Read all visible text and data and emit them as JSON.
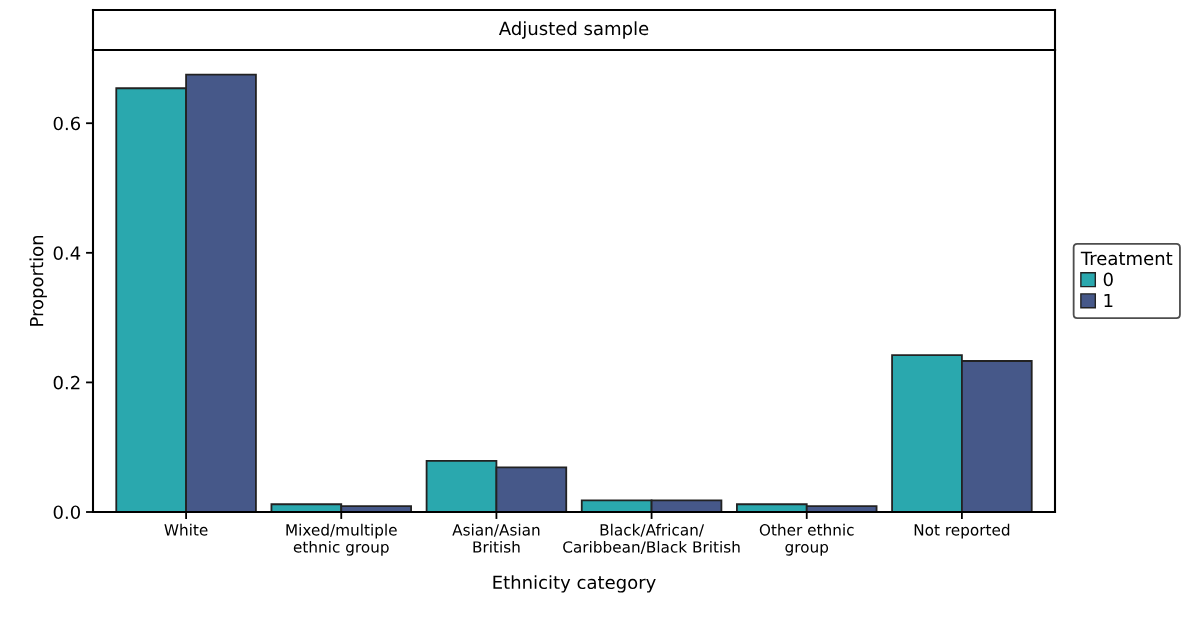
{
  "chart_data": {
    "type": "bar",
    "title": "Adjusted sample",
    "xlabel": "Ethnicity category",
    "ylabel": "Proportion",
    "legend_title": "Treatment",
    "categories": [
      "White",
      "Mixed/multiple\nethnic group",
      "Asian/Asian\nBritish",
      "Black/African/\nCaribbean/Black British",
      "Other ethnic\ngroup",
      "Not reported"
    ],
    "series": [
      {
        "name": "0",
        "color": "#2aa8ae",
        "values": [
          0.654,
          0.012,
          0.079,
          0.018,
          0.012,
          0.242
        ]
      },
      {
        "name": "1",
        "color": "#465889",
        "values": [
          0.675,
          0.009,
          0.069,
          0.018,
          0.009,
          0.233
        ]
      }
    ],
    "ylim": [
      0,
      0.713
    ],
    "yticks": [
      {
        "value": 0,
        "label": "0.0"
      },
      0.2,
      0.4,
      0.6
    ],
    "grid": false,
    "legend": "right"
  }
}
